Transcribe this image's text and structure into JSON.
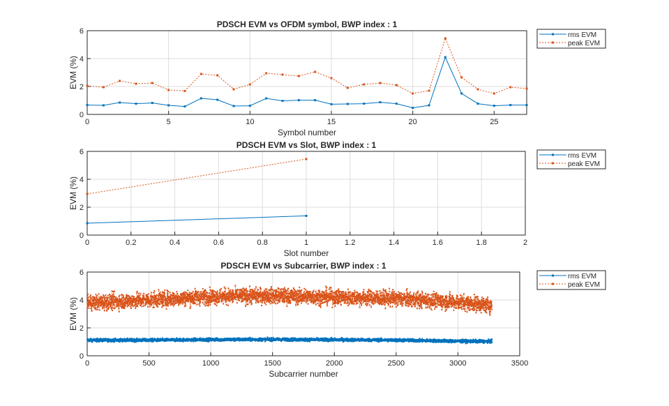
{
  "colors": {
    "rms": "#0072BD",
    "peak": "#D95319"
  },
  "chart_data": [
    {
      "type": "line",
      "title": "PDSCH EVM vs OFDM symbol, BWP index : 1",
      "xlabel": "Symbol number",
      "ylabel": "EVM (%)",
      "xlim": [
        0,
        27
      ],
      "ylim": [
        0,
        6
      ],
      "xticks": [
        0,
        5,
        10,
        15,
        20,
        25
      ],
      "yticks": [
        0,
        2,
        4,
        6
      ],
      "grid": true,
      "legend": "outside-top-right",
      "x": [
        0,
        1,
        2,
        3,
        4,
        5,
        6,
        7,
        8,
        9,
        10,
        11,
        12,
        13,
        14,
        15,
        16,
        17,
        18,
        19,
        20,
        21,
        22,
        23,
        24,
        25,
        26,
        27
      ],
      "series": [
        {
          "name": "rms EVM",
          "style": "solid",
          "values": [
            0.67,
            0.65,
            0.85,
            0.77,
            0.82,
            0.65,
            0.57,
            1.15,
            1.05,
            0.6,
            0.62,
            1.15,
            0.97,
            1.02,
            1.02,
            0.73,
            0.75,
            0.77,
            0.87,
            0.77,
            0.47,
            0.65,
            4.1,
            1.5,
            0.77,
            0.62,
            0.67,
            0.67
          ]
        },
        {
          "name": "peak EVM",
          "style": "dotted",
          "values": [
            2.05,
            1.95,
            2.4,
            2.2,
            2.25,
            1.75,
            1.68,
            2.9,
            2.8,
            1.8,
            2.15,
            2.95,
            2.85,
            2.75,
            3.05,
            2.6,
            1.9,
            2.15,
            2.25,
            2.1,
            1.5,
            1.7,
            5.45,
            2.65,
            1.8,
            1.5,
            1.95,
            1.85
          ]
        }
      ]
    },
    {
      "type": "line",
      "title": "PDSCH EVM vs Slot, BWP index : 1",
      "xlabel": "Slot number",
      "ylabel": "EVM (%)",
      "xlim": [
        0,
        2
      ],
      "ylim": [
        0,
        6
      ],
      "xticks": [
        0,
        0.2,
        0.4,
        0.6,
        0.8,
        1,
        1.2,
        1.4,
        1.6,
        1.8,
        2
      ],
      "yticks": [
        0,
        2,
        4,
        6
      ],
      "grid": true,
      "legend": "outside-top-right",
      "x": [
        0,
        1
      ],
      "series": [
        {
          "name": "rms EVM",
          "style": "solid",
          "values": [
            0.85,
            1.38
          ]
        },
        {
          "name": "peak EVM",
          "style": "dotted",
          "values": [
            2.95,
            5.45
          ]
        }
      ]
    },
    {
      "type": "line",
      "title": "PDSCH EVM vs Subcarrier, BWP index : 1",
      "xlabel": "Subcarrier number",
      "ylabel": "EVM (%)",
      "xlim": [
        0,
        3500
      ],
      "ylim": [
        0,
        6
      ],
      "xticks": [
        0,
        500,
        1000,
        1500,
        2000,
        2500,
        3000,
        3500
      ],
      "yticks": [
        0,
        2,
        4,
        6
      ],
      "grid": true,
      "legend": "outside-top-right",
      "x_range": [
        0,
        3275
      ],
      "trend_x": [
        0,
        500,
        1000,
        1500,
        2000,
        2500,
        3000,
        3275
      ],
      "series": [
        {
          "name": "rms EVM",
          "style": "solid",
          "trend": [
            1.12,
            1.12,
            1.16,
            1.17,
            1.15,
            1.12,
            1.05,
            1.03
          ],
          "spread": 0.12
        },
        {
          "name": "peak EVM",
          "style": "dotted",
          "trend": [
            3.8,
            4.0,
            4.25,
            4.3,
            4.2,
            4.1,
            3.85,
            3.6
          ],
          "spread": 0.6
        }
      ]
    }
  ]
}
